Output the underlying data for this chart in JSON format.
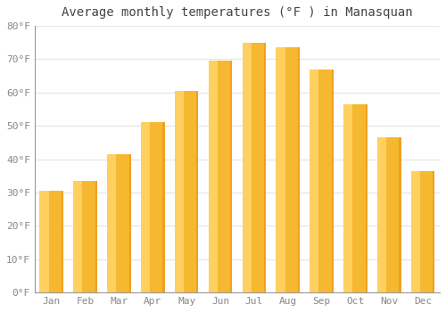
{
  "title": "Average monthly temperatures (°F ) in Manasquan",
  "months": [
    "Jan",
    "Feb",
    "Mar",
    "Apr",
    "May",
    "Jun",
    "Jul",
    "Aug",
    "Sep",
    "Oct",
    "Nov",
    "Dec"
  ],
  "values": [
    30.5,
    33.5,
    41.5,
    51.0,
    60.5,
    69.5,
    75.0,
    73.5,
    67.0,
    56.5,
    46.5,
    36.5
  ],
  "bar_color_left": "#FFD060",
  "bar_color_right": "#F0A020",
  "bar_color_main": "#F5B830",
  "ylim": [
    0,
    80
  ],
  "yticks": [
    0,
    10,
    20,
    30,
    40,
    50,
    60,
    70,
    80
  ],
  "ytick_labels": [
    "0°F",
    "10°F",
    "20°F",
    "30°F",
    "40°F",
    "50°F",
    "60°F",
    "70°F",
    "80°F"
  ],
  "background_color": "#ffffff",
  "grid_color": "#e8e8e8",
  "title_fontsize": 10,
  "tick_fontsize": 8,
  "title_color": "#444444",
  "tick_color": "#888888"
}
